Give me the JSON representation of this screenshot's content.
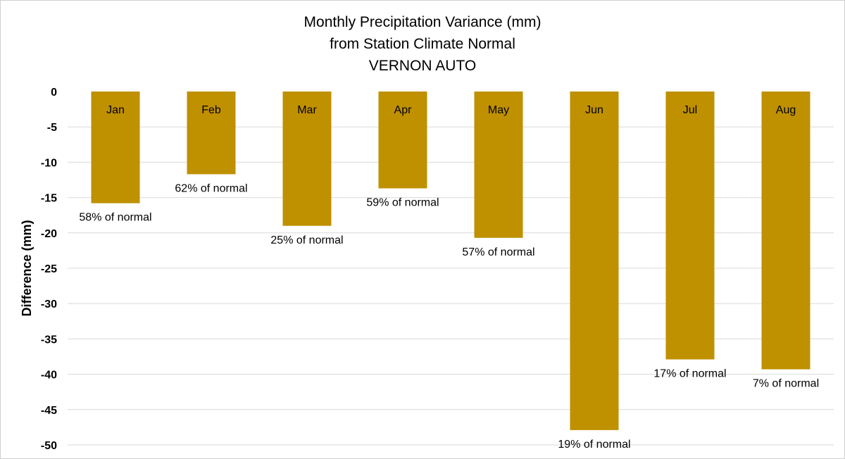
{
  "chart_data": {
    "type": "bar",
    "title": [
      "Monthly Precipitation Variance (mm)",
      "from Station Climate Normal",
      "VERNON AUTO"
    ],
    "xlabel": "",
    "ylabel": "Difference (mm)",
    "categories": [
      "Jan",
      "Feb",
      "Mar",
      "Apr",
      "May",
      "Jun",
      "Jul",
      "Aug"
    ],
    "values": [
      -15.8,
      -11.7,
      -19.0,
      -13.7,
      -20.7,
      -47.9,
      -37.9,
      -39.3
    ],
    "data_labels": [
      "58% of normal",
      "62% of normal",
      "25% of normal",
      "59% of normal",
      "57% of normal",
      "19% of normal",
      "17% of normal",
      "7% of normal"
    ],
    "ylim": [
      -50,
      0
    ],
    "yticks": [
      0,
      -5,
      -10,
      -15,
      -20,
      -25,
      -30,
      -35,
      -40,
      -45,
      -50
    ],
    "ytick_labels": [
      "0",
      "-5",
      "-10",
      "-15",
      "-20",
      "-25",
      "-30",
      "-35",
      "-40",
      "-45",
      "-50"
    ],
    "bar_color": "#bf9000",
    "grid": true
  }
}
